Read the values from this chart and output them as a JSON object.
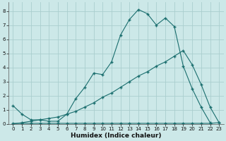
{
  "xlabel": "Humidex (Indice chaleur)",
  "bg_color": "#cce8e8",
  "grid_color": "#aacece",
  "line_color": "#1a6e6e",
  "line1_x": [
    0,
    1,
    2,
    3,
    4,
    5,
    6,
    7,
    8,
    9,
    10,
    11,
    12,
    13,
    14,
    15,
    16,
    17,
    18,
    19,
    20,
    21,
    22
  ],
  "line1_y": [
    1.3,
    0.7,
    0.3,
    0.3,
    0.2,
    0.2,
    0.7,
    1.8,
    2.6,
    3.6,
    3.5,
    4.4,
    6.3,
    7.4,
    8.1,
    7.8,
    7.0,
    7.5,
    6.9,
    4.1,
    2.5,
    1.2,
    0.1
  ],
  "line2_x": [
    0,
    1,
    2,
    3,
    4,
    5,
    6,
    7,
    8,
    9,
    10,
    11,
    12,
    13,
    14,
    15,
    16,
    17,
    18,
    19,
    20,
    21,
    22,
    23
  ],
  "line2_y": [
    0.05,
    0.05,
    0.05,
    0.05,
    0.05,
    0.05,
    0.05,
    0.05,
    0.05,
    0.05,
    0.05,
    0.05,
    0.05,
    0.05,
    0.05,
    0.05,
    0.05,
    0.05,
    0.05,
    0.05,
    0.05,
    0.05,
    0.05,
    0.1
  ],
  "line3_x": [
    0,
    1,
    2,
    3,
    4,
    5,
    6,
    7,
    8,
    9,
    10,
    11,
    12,
    13,
    14,
    15,
    16,
    17,
    18,
    19,
    20,
    21,
    22,
    23
  ],
  "line3_y": [
    0.0,
    0.1,
    0.2,
    0.3,
    0.4,
    0.5,
    0.7,
    0.9,
    1.2,
    1.5,
    1.9,
    2.2,
    2.6,
    3.0,
    3.4,
    3.7,
    4.1,
    4.4,
    4.8,
    5.2,
    4.2,
    2.8,
    1.2,
    0.1
  ],
  "ylim": [
    0,
    8.6
  ],
  "xlim": [
    -0.5,
    23.5
  ],
  "yticks": [
    0,
    1,
    2,
    3,
    4,
    5,
    6,
    7,
    8
  ],
  "xticks": [
    0,
    1,
    2,
    3,
    4,
    5,
    6,
    7,
    8,
    9,
    10,
    11,
    12,
    13,
    14,
    15,
    16,
    17,
    18,
    19,
    20,
    21,
    22,
    23
  ],
  "tick_fontsize": 5.0,
  "xlabel_fontsize": 6.5
}
